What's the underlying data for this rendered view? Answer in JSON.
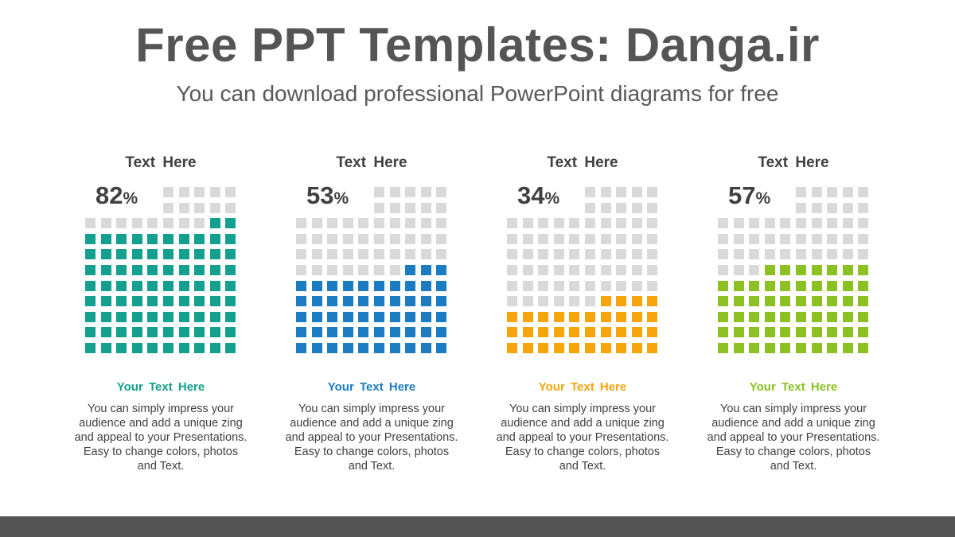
{
  "header": {
    "title": "Free PPT Templates: Danga.ir",
    "subtitle": "You can download professional PowerPoint diagrams for free"
  },
  "colors": {
    "empty_cell": "#d9d9d9",
    "text_dark": "#404040",
    "footer": "#555555"
  },
  "chart_data": [
    {
      "type": "waffle",
      "title": "Text  Here",
      "value": 82,
      "value_label": "82",
      "unit": "%",
      "color": "#13a08e",
      "subtitle": "Your Text  Here",
      "description": "You can simply impress your audience and add a unique zing and appeal to your Presentations. Easy to change colors, photos and Text."
    },
    {
      "type": "waffle",
      "title": "Text  Here",
      "value": 53,
      "value_label": "53",
      "unit": "%",
      "color": "#1b7cc2",
      "subtitle": "Your Text  Here",
      "description": "You can simply impress your audience and add a unique zing and appeal to your Presentations. Easy to change colors, photos and Text."
    },
    {
      "type": "waffle",
      "title": "Text  Here",
      "value": 34,
      "value_label": "34",
      "unit": "%",
      "color": "#f6a50c",
      "subtitle": "Your Text  Here",
      "description": "You can simply impress your audience and add a unique zing and appeal to your Presentations. Easy to change colors, photos and Text."
    },
    {
      "type": "waffle",
      "title": "Text  Here",
      "value": 57,
      "value_label": "57",
      "unit": "%",
      "color": "#8dc022",
      "subtitle": "Your Text  Here",
      "description": "You can simply impress your audience and add a unique zing and appeal to your Presentations. Easy to change colors, photos and Text."
    }
  ]
}
